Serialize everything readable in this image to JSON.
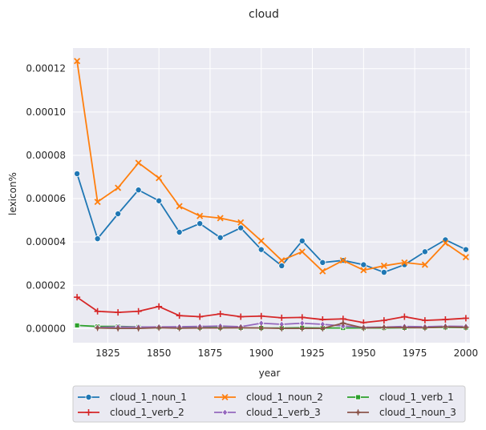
{
  "chart_data": {
    "type": "line",
    "title": "cloud",
    "xlabel": "year",
    "ylabel": "lexicon%",
    "xlim": [
      1808,
      2002
    ],
    "ylim": [
      -6.5e-06,
      0.0001295
    ],
    "x_ticks": [
      1825,
      1850,
      1875,
      1900,
      1925,
      1950,
      1975,
      2000
    ],
    "y_ticks": [
      0,
      2e-05,
      4e-05,
      6e-05,
      8e-05,
      0.0001,
      0.00012
    ],
    "y_tick_labels": [
      "0.00000",
      "0.00002",
      "0.00004",
      "0.00006",
      "0.00008",
      "0.00010",
      "0.00012"
    ],
    "grid": true,
    "background": "#eaeaf2",
    "legend_position": "bottom",
    "legend_columns": 3,
    "x": [
      1810,
      1820,
      1830,
      1840,
      1850,
      1860,
      1870,
      1880,
      1890,
      1900,
      1910,
      1920,
      1930,
      1940,
      1950,
      1960,
      1970,
      1980,
      1990,
      2000
    ],
    "series": [
      {
        "name": "cloud_1_noun_1",
        "color": "#1f77b4",
        "marker": "circle",
        "values": [
          7.15e-05,
          4.15e-05,
          5.3e-05,
          6.4e-05,
          5.9e-05,
          4.45e-05,
          4.85e-05,
          4.2e-05,
          4.65e-05,
          3.65e-05,
          2.9e-05,
          4.05e-05,
          3.05e-05,
          3.15e-05,
          2.95e-05,
          2.6e-05,
          2.95e-05,
          3.55e-05,
          4.1e-05,
          3.65e-05
        ]
      },
      {
        "name": "cloud_1_noun_2",
        "color": "#ff7f0e",
        "marker": "x",
        "values": [
          0.0001235,
          5.85e-05,
          6.5e-05,
          7.65e-05,
          6.95e-05,
          5.65e-05,
          5.2e-05,
          5.1e-05,
          4.9e-05,
          4.05e-05,
          3.15e-05,
          3.55e-05,
          2.65e-05,
          3.15e-05,
          2.7e-05,
          2.9e-05,
          3.05e-05,
          2.95e-05,
          3.95e-05,
          3.3e-05
        ]
      },
      {
        "name": "cloud_1_verb_1",
        "color": "#2ca02c",
        "marker": "square",
        "values": [
          1.5e-06,
          1e-06,
          1e-06,
          8e-07,
          6e-07,
          5e-07,
          5e-07,
          5e-07,
          4e-07,
          3e-07,
          3e-07,
          4e-07,
          3e-07,
          3e-07,
          3e-07,
          3e-07,
          4e-07,
          5e-07,
          6e-07,
          5e-07
        ]
      },
      {
        "name": "cloud_1_verb_2",
        "color": "#d62728",
        "marker": "plus",
        "values": [
          1.45e-05,
          8e-06,
          7.5e-06,
          8e-06,
          1.02e-05,
          6e-06,
          5.5e-06,
          6.8e-06,
          5.5e-06,
          5.8e-06,
          5e-06,
          5.2e-06,
          4.2e-06,
          4.5e-06,
          2.8e-06,
          3.8e-06,
          5.5e-06,
          3.8e-06,
          4.2e-06,
          4.8e-06
        ]
      },
      {
        "name": "cloud_1_verb_3",
        "color": "#9467bd",
        "marker": "diamond",
        "values": [
          null,
          5e-07,
          8e-07,
          7e-07,
          8e-07,
          9e-07,
          1e-06,
          1.2e-06,
          9e-07,
          2.5e-06,
          2e-06,
          2.5e-06,
          2e-06,
          1.2e-06,
          6e-07,
          7e-07,
          1e-06,
          9e-07,
          1.1e-06,
          1e-06
        ]
      },
      {
        "name": "cloud_1_noun_3",
        "color": "#8c564b",
        "marker": "star",
        "values": [
          null,
          3e-07,
          1e-07,
          1e-07,
          4e-07,
          2e-07,
          3e-07,
          3e-07,
          4e-07,
          3e-07,
          1e-07,
          1e-07,
          1e-07,
          2.5e-06,
          3e-07,
          6e-07,
          5e-07,
          4e-07,
          8e-07,
          6e-07
        ]
      }
    ]
  }
}
